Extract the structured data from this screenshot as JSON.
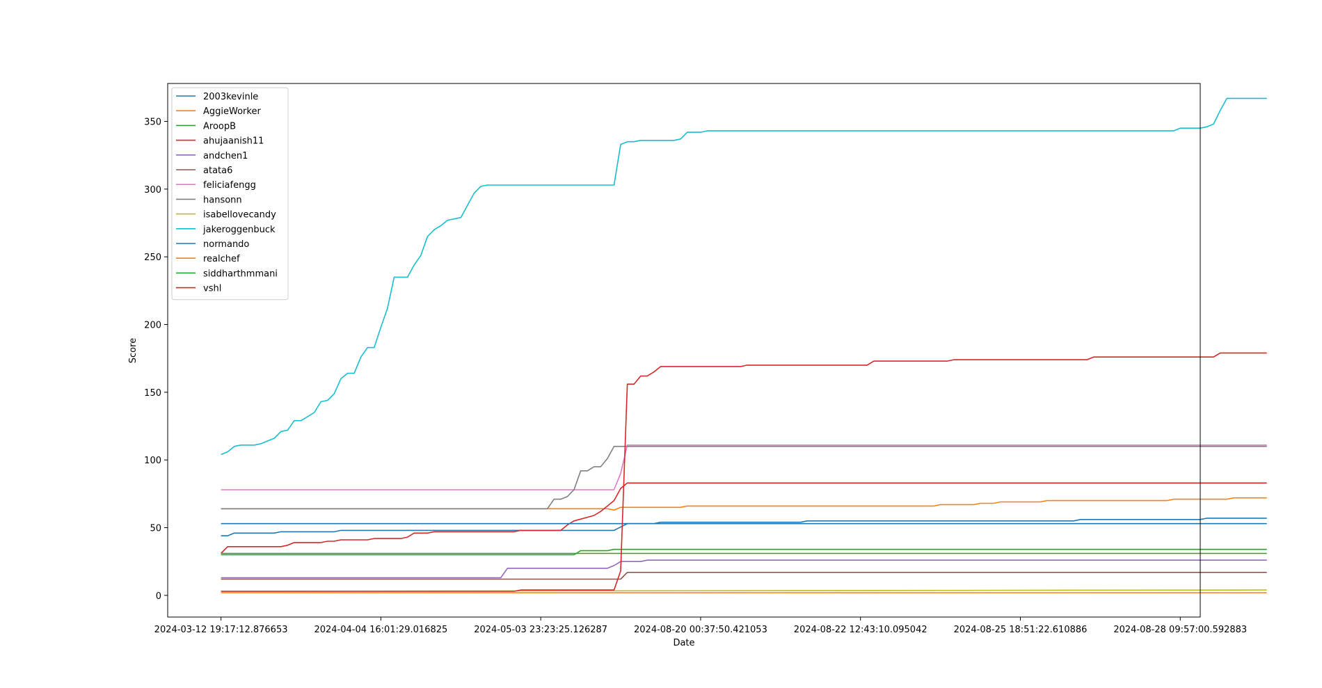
{
  "chart_data": {
    "type": "line",
    "title": "",
    "xlabel": "Date",
    "ylabel": "Score",
    "ylim": [
      -16,
      378
    ],
    "yticks": [
      0,
      50,
      100,
      150,
      200,
      250,
      300,
      350
    ],
    "xlim": [
      -8,
      147
    ],
    "xticks": [
      0,
      24,
      48,
      72,
      96,
      120,
      144
    ],
    "xtick_labels": [
      "2024-03-12 19:17:12.876653",
      "2024-04-04 16:01:29.016825",
      "2024-05-03 23:23:25.126287",
      "2024-08-20 00:37:50.421053",
      "2024-08-22 12:43:10.095042",
      "2024-08-25 18:51:22.610886",
      "2024-08-28 09:57:00.592883"
    ],
    "x_note": "x values are observation indices between the dated tick labels",
    "grid": false,
    "legend_position": "upper left",
    "series": [
      {
        "name": "2003kevinle",
        "color": "#1f77b4",
        "points": [
          [
            0,
            44
          ],
          [
            1,
            44
          ],
          [
            2,
            46
          ],
          [
            8,
            46
          ],
          [
            9,
            47
          ],
          [
            17,
            47
          ],
          [
            18,
            48
          ],
          [
            59,
            48
          ],
          [
            61,
            53
          ],
          [
            65,
            53
          ],
          [
            66,
            54
          ],
          [
            87,
            54
          ],
          [
            88,
            55
          ],
          [
            128,
            55
          ],
          [
            129,
            56
          ],
          [
            147,
            56
          ],
          [
            148,
            57
          ],
          [
            157,
            57
          ]
        ]
      },
      {
        "name": "AggieWorker",
        "color": "#ff7f0e",
        "points": [
          [
            0,
            64
          ],
          [
            58,
            64
          ],
          [
            59,
            63
          ],
          [
            60,
            65
          ],
          [
            69,
            65
          ],
          [
            70,
            66
          ],
          [
            107,
            66
          ],
          [
            108,
            67
          ],
          [
            113,
            67
          ],
          [
            114,
            68
          ],
          [
            116,
            68
          ],
          [
            117,
            69
          ],
          [
            123,
            69
          ],
          [
            124,
            70
          ],
          [
            142,
            70
          ],
          [
            143,
            71
          ],
          [
            151,
            71
          ],
          [
            152,
            72
          ],
          [
            157,
            72
          ]
        ]
      },
      {
        "name": "AroopB",
        "color": "#2ca02c",
        "points": [
          [
            0,
            30
          ],
          [
            53,
            30
          ],
          [
            54,
            33
          ],
          [
            58,
            33
          ],
          [
            59,
            34
          ],
          [
            157,
            34
          ]
        ]
      },
      {
        "name": "ahujaanish11",
        "color": "#d62728",
        "points": [
          [
            0,
            31
          ],
          [
            1,
            36
          ],
          [
            9,
            36
          ],
          [
            10,
            37
          ],
          [
            11,
            39
          ],
          [
            15,
            39
          ],
          [
            16,
            40
          ],
          [
            17,
            40
          ],
          [
            18,
            41
          ],
          [
            22,
            41
          ],
          [
            23,
            42
          ],
          [
            27,
            42
          ],
          [
            28,
            43
          ],
          [
            29,
            46
          ],
          [
            31,
            46
          ],
          [
            32,
            47
          ],
          [
            44,
            47
          ],
          [
            45,
            48
          ],
          [
            51,
            48
          ],
          [
            52,
            52
          ],
          [
            53,
            55
          ],
          [
            56,
            59
          ],
          [
            57,
            62
          ],
          [
            59,
            70
          ],
          [
            60,
            79
          ],
          [
            61,
            83
          ],
          [
            157,
            83
          ]
        ]
      },
      {
        "name": "andchen1",
        "color": "#9467bd",
        "points": [
          [
            0,
            13
          ],
          [
            42,
            13
          ],
          [
            43,
            20
          ],
          [
            58,
            20
          ],
          [
            59,
            22
          ],
          [
            60,
            25
          ],
          [
            63,
            25
          ],
          [
            64,
            26
          ],
          [
            157,
            26
          ]
        ]
      },
      {
        "name": "atata6",
        "color": "#8c564b",
        "points": [
          [
            0,
            12
          ],
          [
            59,
            12
          ],
          [
            60,
            12
          ],
          [
            61,
            17
          ],
          [
            157,
            17
          ]
        ]
      },
      {
        "name": "feliciafengg",
        "color": "#e377c2",
        "points": [
          [
            0,
            78
          ],
          [
            59,
            78
          ],
          [
            60,
            90
          ],
          [
            61,
            111
          ],
          [
            157,
            111
          ]
        ]
      },
      {
        "name": "hansonn",
        "color": "#7f7f7f",
        "points": [
          [
            0,
            64
          ],
          [
            49,
            64
          ],
          [
            50,
            71
          ],
          [
            51,
            71
          ],
          [
            52,
            73
          ],
          [
            53,
            78
          ],
          [
            54,
            92
          ],
          [
            55,
            92
          ],
          [
            56,
            95
          ],
          [
            57,
            95
          ],
          [
            58,
            101
          ],
          [
            59,
            110
          ],
          [
            157,
            110
          ]
        ]
      },
      {
        "name": "isabellovecandy",
        "color": "#bcbd22",
        "points": [
          [
            0,
            3
          ],
          [
            157,
            4
          ]
        ]
      },
      {
        "name": "jakeroggenbuck",
        "color": "#17becf",
        "points": [
          [
            0,
            104
          ],
          [
            1,
            106
          ],
          [
            2,
            110
          ],
          [
            3,
            111
          ],
          [
            5,
            111
          ],
          [
            6,
            112
          ],
          [
            7,
            114
          ],
          [
            8,
            116
          ],
          [
            9,
            121
          ],
          [
            10,
            122
          ],
          [
            11,
            129
          ],
          [
            12,
            129
          ],
          [
            13,
            132
          ],
          [
            14,
            135
          ],
          [
            15,
            143
          ],
          [
            16,
            144
          ],
          [
            17,
            149
          ],
          [
            18,
            160
          ],
          [
            19,
            164
          ],
          [
            20,
            164
          ],
          [
            21,
            176
          ],
          [
            22,
            183
          ],
          [
            23,
            183
          ],
          [
            24,
            198
          ],
          [
            25,
            212
          ],
          [
            26,
            235
          ],
          [
            28,
            235
          ],
          [
            29,
            244
          ],
          [
            30,
            251
          ],
          [
            31,
            265
          ],
          [
            32,
            270
          ],
          [
            33,
            273
          ],
          [
            34,
            277
          ],
          [
            35,
            278
          ],
          [
            36,
            279
          ],
          [
            37,
            288
          ],
          [
            38,
            297
          ],
          [
            39,
            302
          ],
          [
            40,
            303
          ],
          [
            59,
            303
          ],
          [
            60,
            333
          ],
          [
            61,
            335
          ],
          [
            62,
            335
          ],
          [
            63,
            336
          ],
          [
            68,
            336
          ],
          [
            69,
            337
          ],
          [
            70,
            342
          ],
          [
            72,
            342
          ],
          [
            73,
            343
          ],
          [
            143,
            343
          ],
          [
            144,
            345
          ],
          [
            147,
            345
          ],
          [
            148,
            346
          ],
          [
            149,
            348
          ],
          [
            150,
            358
          ],
          [
            151,
            367
          ],
          [
            157,
            367
          ]
        ]
      },
      {
        "name": "normando",
        "color": "#1f77b4",
        "points": [
          [
            0,
            53
          ],
          [
            157,
            53
          ]
        ]
      },
      {
        "name": "realchef",
        "color": "#ff7f0e",
        "points": [
          [
            0,
            2
          ],
          [
            157,
            2
          ]
        ]
      },
      {
        "name": "siddharthmmani",
        "color": "#2ca02c",
        "points": [
          [
            0,
            31
          ],
          [
            157,
            31
          ]
        ]
      },
      {
        "name": "vshl",
        "color": "#d62728",
        "points": [
          [
            0,
            3
          ],
          [
            44,
            3
          ],
          [
            45,
            4
          ],
          [
            59,
            4
          ],
          [
            60,
            18
          ],
          [
            61,
            156
          ],
          [
            62,
            156
          ],
          [
            63,
            162
          ],
          [
            64,
            162
          ],
          [
            65,
            165
          ],
          [
            66,
            169
          ],
          [
            78,
            169
          ],
          [
            79,
            170
          ],
          [
            97,
            170
          ],
          [
            98,
            173
          ],
          [
            109,
            173
          ],
          [
            110,
            174
          ],
          [
            130,
            174
          ],
          [
            131,
            176
          ],
          [
            149,
            176
          ],
          [
            150,
            179
          ],
          [
            157,
            179
          ]
        ]
      }
    ]
  }
}
